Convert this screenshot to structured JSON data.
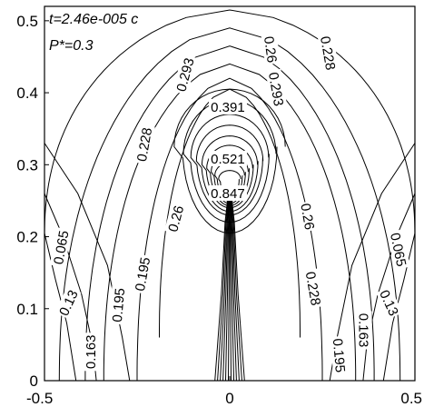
{
  "chart_data": {
    "type": "contour",
    "title": "",
    "xlabel": "",
    "ylabel": "",
    "xlim": [
      -0.5,
      0.5
    ],
    "ylim": [
      0,
      0.52
    ],
    "x_ticks": [
      {
        "value": -0.5,
        "label": "-0.5"
      },
      {
        "value": 0,
        "label": "0"
      },
      {
        "value": 0.5,
        "label": "0.5"
      }
    ],
    "y_ticks": [
      {
        "value": 0,
        "label": "0"
      },
      {
        "value": 0.1,
        "label": "0.1"
      },
      {
        "value": 0.2,
        "label": "0.2"
      },
      {
        "value": 0.3,
        "label": "0.3"
      },
      {
        "value": 0.4,
        "label": "0.4"
      },
      {
        "value": 0.5,
        "label": "0.5"
      }
    ],
    "annotations": [
      "t=2.46e-005 c",
      "P*=0.3"
    ],
    "contour_levels": [
      "0.065",
      "0.13",
      "0.163",
      "0.195",
      "0.228",
      "0.26",
      "0.293",
      "0.391",
      "0.521",
      "0.847"
    ],
    "contour_labels": [
      {
        "text": "0.293",
        "x": -0.12,
        "y": 0.425,
        "rot": -75
      },
      {
        "text": "0.26",
        "x": 0.11,
        "y": 0.46,
        "rot": 82
      },
      {
        "text": "0.228",
        "x": 0.265,
        "y": 0.455,
        "rot": 80
      },
      {
        "text": "0.293",
        "x": 0.125,
        "y": 0.405,
        "rot": 80
      },
      {
        "text": "0.391",
        "x": -0.005,
        "y": 0.38,
        "rot": 0
      },
      {
        "text": "0.228",
        "x": -0.23,
        "y": 0.328,
        "rot": -80
      },
      {
        "text": "0.521",
        "x": -0.005,
        "y": 0.308,
        "rot": 0
      },
      {
        "text": "0.847",
        "x": -0.005,
        "y": 0.26,
        "rot": 0
      },
      {
        "text": "0.26",
        "x": -0.145,
        "y": 0.225,
        "rot": -75
      },
      {
        "text": "0.26",
        "x": 0.21,
        "y": 0.228,
        "rot": 80
      },
      {
        "text": "0.065",
        "x": -0.455,
        "y": 0.185,
        "rot": -80
      },
      {
        "text": "0.13",
        "x": -0.435,
        "y": 0.108,
        "rot": -65
      },
      {
        "text": "0.195",
        "x": -0.235,
        "y": 0.148,
        "rot": -80
      },
      {
        "text": "0.195",
        "x": -0.3,
        "y": 0.105,
        "rot": -85
      },
      {
        "text": "0.163",
        "x": -0.375,
        "y": 0.04,
        "rot": -90
      },
      {
        "text": "0.228",
        "x": 0.225,
        "y": 0.128,
        "rot": 80
      },
      {
        "text": "0.065",
        "x": 0.455,
        "y": 0.182,
        "rot": 78
      },
      {
        "text": "0.13",
        "x": 0.43,
        "y": 0.108,
        "rot": 65
      },
      {
        "text": "0.163",
        "x": 0.362,
        "y": 0.07,
        "rot": 90
      },
      {
        "text": "0.195",
        "x": 0.295,
        "y": 0.035,
        "rot": 85
      }
    ]
  }
}
